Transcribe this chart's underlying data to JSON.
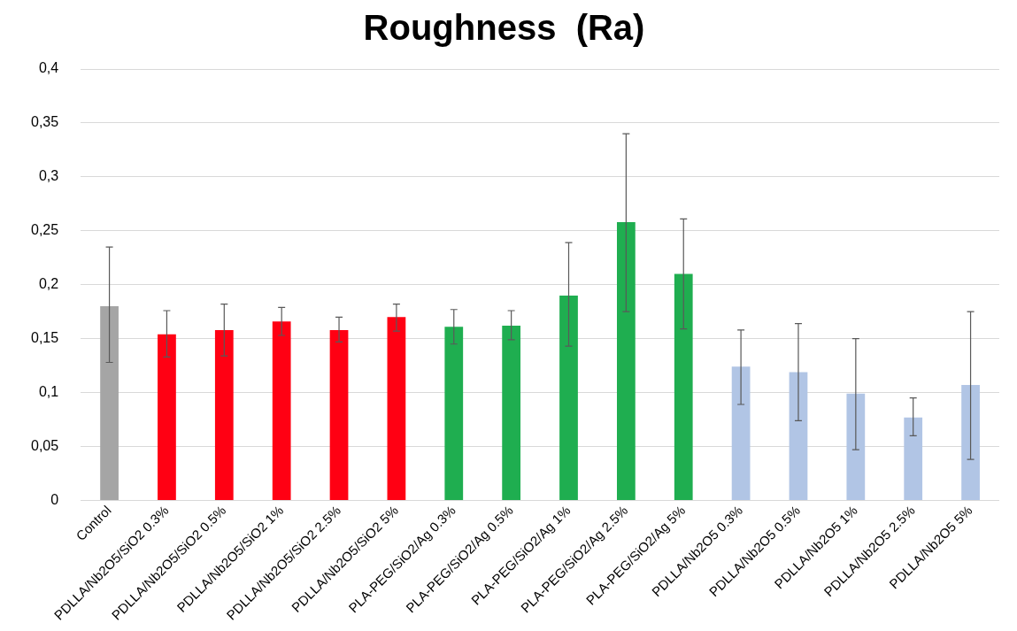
{
  "chart_data": {
    "type": "bar",
    "title": "Roughness  (Ra)",
    "categories": [
      "Control",
      "PDLLA/Nb2O5/SiO2 0.3%",
      "PDLLA/Nb2O5/SiO2 0.5%",
      "PDLLA/Nb2O5/SiO2 1%",
      "PDLLA/Nb2O5/SiO2 2.5%",
      "PDLLA/Nb2O5/SiO2 5%",
      "PLA-PEG/SiO2/Ag 0.3%",
      "PLA-PEG/SiO2/Ag 0.5%",
      "PLA-PEG/SiO2/Ag 1%",
      "PLA-PEG/SiO2/Ag 2.5%",
      "PLA-PEG/SiO2/Ag 5%",
      "PDLLA/Nb2O5 0.3%",
      "PDLLA/Nb2O5 0.5%",
      "PDLLA/Nb2O5 1%",
      "PDLLA/Nb2O5 2.5%",
      "PDLLA/Nb2O5 5%"
    ],
    "values": [
      0.18,
      0.154,
      0.158,
      0.166,
      0.158,
      0.17,
      0.161,
      0.162,
      0.19,
      0.258,
      0.21,
      0.124,
      0.119,
      0.099,
      0.077,
      0.107
    ],
    "errors": [
      [
        0.128,
        0.235
      ],
      [
        0.133,
        0.176
      ],
      [
        0.134,
        0.182
      ],
      [
        0.153,
        0.179
      ],
      [
        0.147,
        0.17
      ],
      [
        0.157,
        0.182
      ],
      [
        0.145,
        0.177
      ],
      [
        0.149,
        0.176
      ],
      [
        0.143,
        0.239
      ],
      [
        0.175,
        0.34
      ],
      [
        0.159,
        0.261
      ],
      [
        0.089,
        0.158
      ],
      [
        0.074,
        0.164
      ],
      [
        0.047,
        0.15
      ],
      [
        0.06,
        0.095
      ],
      [
        0.038,
        0.175
      ]
    ],
    "colors": [
      "#a5a5a5",
      "#ff0013",
      "#ff0013",
      "#ff0013",
      "#ff0013",
      "#ff0013",
      "#1fae50",
      "#1fae50",
      "#1fae50",
      "#1fae50",
      "#1fae50",
      "#b1c5e5",
      "#b1c5e5",
      "#b1c5e5",
      "#b1c5e5",
      "#b1c5e5"
    ],
    "ylim": [
      0,
      0.4
    ],
    "yticks": [
      {
        "value": 0,
        "label": "0"
      },
      {
        "value": 0.05,
        "label": "0,05"
      },
      {
        "value": 0.1,
        "label": "0,1"
      },
      {
        "value": 0.15,
        "label": "0,15"
      },
      {
        "value": 0.2,
        "label": "0,2"
      },
      {
        "value": 0.25,
        "label": "0,25"
      },
      {
        "value": 0.3,
        "label": "0,3"
      },
      {
        "value": 0.35,
        "label": "0,35"
      },
      {
        "value": 0.4,
        "label": "0,4"
      }
    ],
    "grid": "y",
    "legend": false
  }
}
